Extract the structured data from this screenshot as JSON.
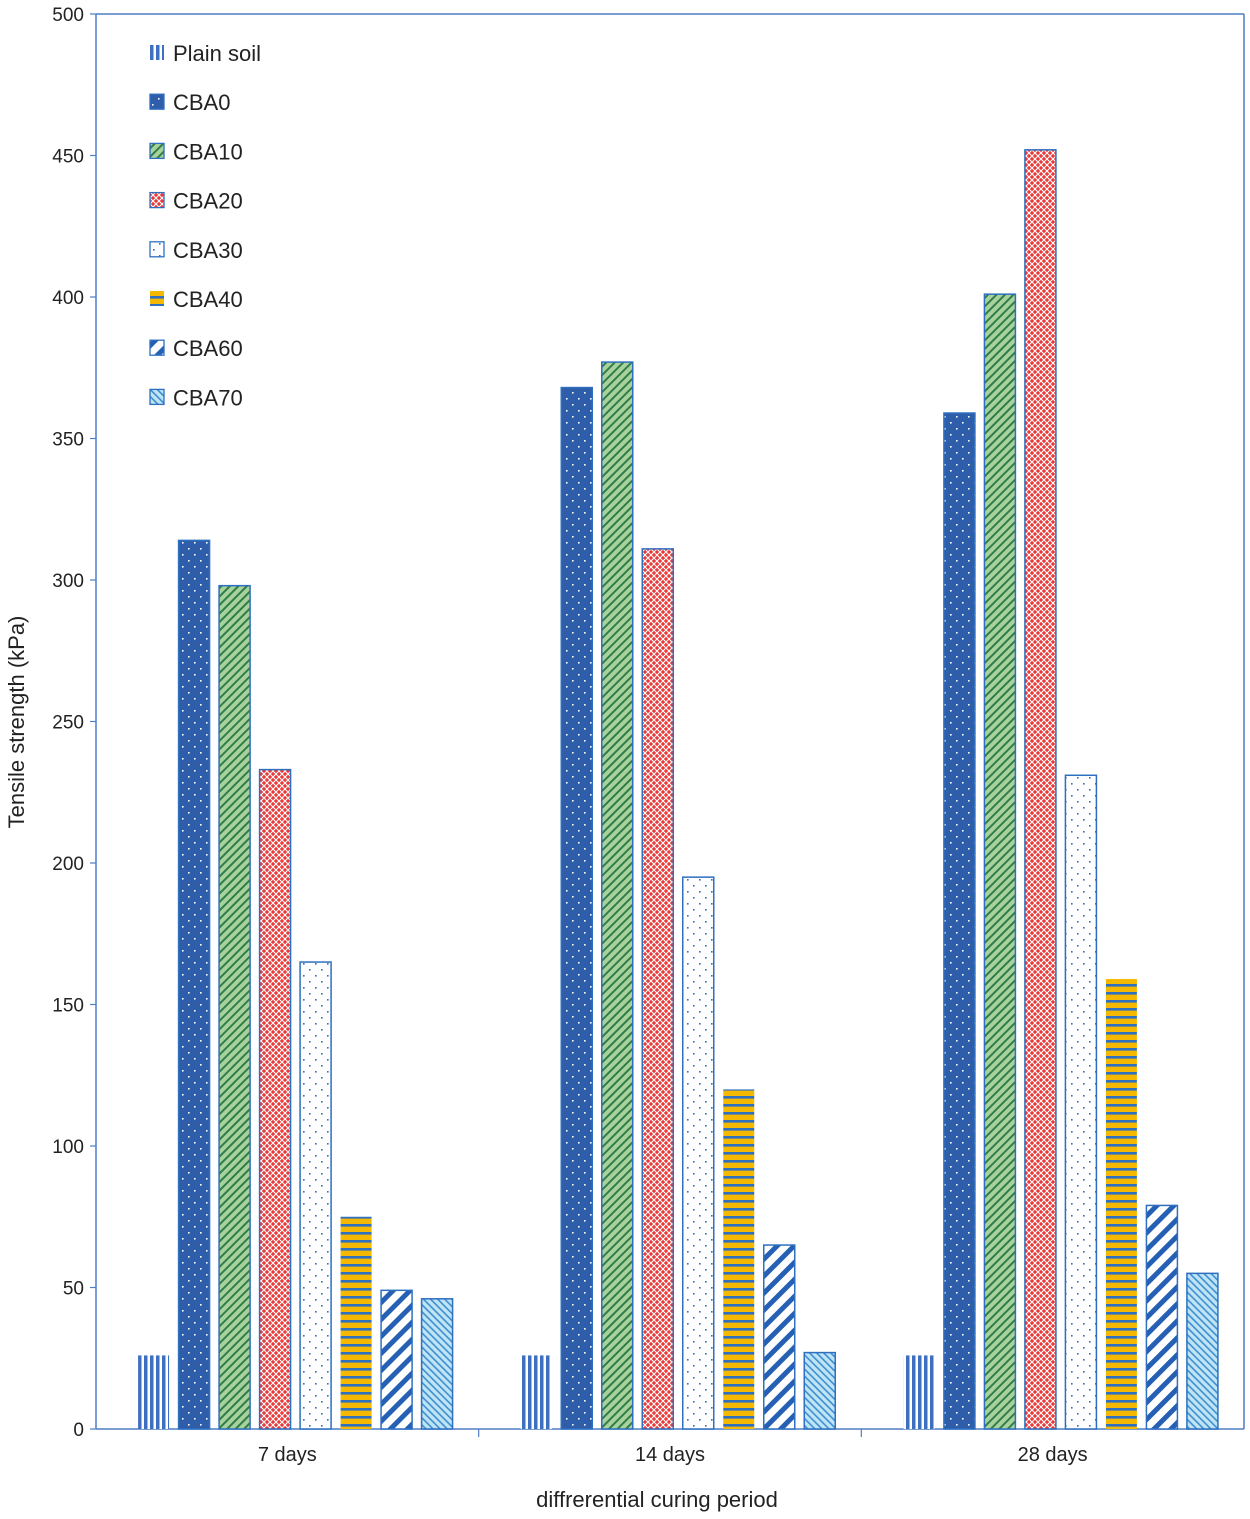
{
  "chart_data": {
    "type": "bar",
    "title": "",
    "xlabel": "diffrerential curing period",
    "ylabel": "Tensile strength (kPa)",
    "ylim": [
      0,
      500
    ],
    "yticks": [
      0,
      50,
      100,
      150,
      200,
      250,
      300,
      350,
      400,
      450,
      500
    ],
    "categories": [
      "7 days",
      "14 days",
      "28 days"
    ],
    "legend_position": "top-left",
    "grid": false,
    "series": [
      {
        "name": "Plain soil",
        "values": [
          26,
          26,
          26
        ],
        "color": "#4472C4",
        "pattern": "vstripe"
      },
      {
        "name": "CBA0",
        "values": [
          314,
          368,
          359
        ],
        "color": "#2E5EAA",
        "pattern": "dots-solid"
      },
      {
        "name": "CBA10",
        "values": [
          298,
          377,
          401
        ],
        "color": "#8CC084",
        "pattern": "diagonal-green"
      },
      {
        "name": "CBA20",
        "values": [
          233,
          311,
          452
        ],
        "color": "#E03A3A",
        "pattern": "cross-red"
      },
      {
        "name": "CBA30",
        "values": [
          165,
          195,
          231
        ],
        "color": "#ffffff",
        "pattern": "dots-white"
      },
      {
        "name": "CBA40",
        "values": [
          75,
          120,
          159
        ],
        "color": "#F5B800",
        "pattern": "hstripe"
      },
      {
        "name": "CBA60",
        "values": [
          49,
          65,
          79
        ],
        "color": "#ffffff",
        "pattern": "wide-diagonal"
      },
      {
        "name": "CBA70",
        "values": [
          46,
          27,
          55
        ],
        "color": "#9ED3EE",
        "pattern": "light-diagonal"
      }
    ]
  }
}
